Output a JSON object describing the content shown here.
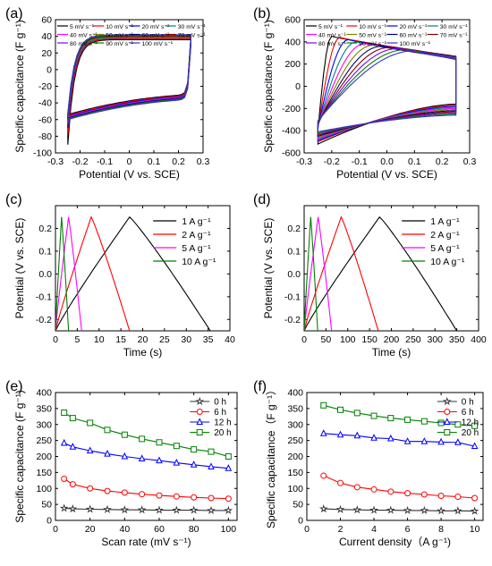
{
  "chart_data": [
    {
      "panel": "(a)",
      "type": "line",
      "xlabel": "Potential (V vs. SCE)",
      "ylabel": "Specific capacitance (F g⁻¹)",
      "xlim": [
        -0.3,
        0.3
      ],
      "ylim": [
        -100,
        60
      ],
      "xticks": [
        -0.3,
        -0.2,
        -0.1,
        0.0,
        0.1,
        0.2,
        0.3
      ],
      "xtick_labels": [
        "-0.3",
        "-0.2",
        "-0.1",
        "0",
        "0.1",
        "0.2",
        "0.3"
      ],
      "yticks": [
        -100,
        -80,
        -60,
        -40,
        -20,
        0,
        20,
        40,
        60
      ],
      "ytick_labels": [
        "-100",
        "-80",
        "-60",
        "-40",
        "-20",
        "0",
        "20",
        "40",
        "60"
      ],
      "legend_position": "top",
      "cv_shape": {
        "v_min": -0.25,
        "v_max": 0.25,
        "kind": "rectangular"
      },
      "series": [
        {
          "name": "5 mV s⁻¹",
          "color": "#000000",
          "upper_plateau": 36,
          "lower_plateau": -30,
          "upper_start": -90,
          "lower_end": 38
        },
        {
          "name": "10 mV s⁻¹",
          "color": "#ff0000",
          "upper_plateau": 37,
          "lower_plateau": -31,
          "upper_start": -78,
          "lower_end": 37
        },
        {
          "name": "20 mV s⁻¹",
          "color": "#0000ff",
          "upper_plateau": 38,
          "lower_plateau": -32,
          "upper_start": -70,
          "lower_end": 36
        },
        {
          "name": "30 mV s⁻¹",
          "color": "#008080",
          "upper_plateau": 38,
          "lower_plateau": -33,
          "upper_start": -66,
          "lower_end": 35
        },
        {
          "name": "40 mV s⁻¹",
          "color": "#ff00ff",
          "upper_plateau": 39,
          "lower_plateau": -33,
          "upper_start": -63,
          "lower_end": 34
        },
        {
          "name": "50 mV s⁻¹",
          "color": "#808000",
          "upper_plateau": 39,
          "lower_plateau": -34,
          "upper_start": -60,
          "lower_end": 33
        },
        {
          "name": "60 mV s⁻¹",
          "color": "#000080",
          "upper_plateau": 40,
          "lower_plateau": -34,
          "upper_start": -58,
          "lower_end": 32
        },
        {
          "name": "70 mV s⁻¹",
          "color": "#800000",
          "upper_plateau": 40,
          "lower_plateau": -35,
          "upper_start": -56,
          "lower_end": 31
        },
        {
          "name": "80 mV s⁻¹",
          "color": "#8000ff",
          "upper_plateau": 41,
          "lower_plateau": -35,
          "upper_start": -55,
          "lower_end": 30
        },
        {
          "name": "90 mV s⁻¹",
          "color": "#008000",
          "upper_plateau": 41,
          "lower_plateau": -35,
          "upper_start": -54,
          "lower_end": 29
        },
        {
          "name": "100 mV s⁻¹",
          "color": "#3333cc",
          "upper_plateau": 42,
          "lower_plateau": -36,
          "upper_start": -52,
          "lower_end": 28
        }
      ]
    },
    {
      "panel": "(b)",
      "type": "line",
      "xlabel": "Potential (V vs. SCE)",
      "ylabel": "Specific capacitance (F g⁻¹)",
      "xlim": [
        -0.3,
        0.3
      ],
      "ylim": [
        -600,
        600
      ],
      "xticks": [
        -0.3,
        -0.2,
        -0.1,
        0.0,
        0.1,
        0.2,
        0.3
      ],
      "xtick_labels": [
        "-0.3",
        "-0.2",
        "-0.1",
        "0.0",
        "0.1",
        "0.2",
        "0.3"
      ],
      "yticks": [
        -600,
        -400,
        -200,
        0,
        200,
        400,
        600
      ],
      "ytick_labels": [
        "-600",
        "-400",
        "-200",
        "0",
        "200",
        "400",
        "600"
      ],
      "legend_position": "top",
      "cv_shape": {
        "v_min": -0.25,
        "v_max": 0.25,
        "kind": "leaf"
      },
      "series": [
        {
          "name": "5 mV s⁻¹",
          "color": "#000000",
          "peak": 450,
          "peak_v": -0.2,
          "end_upper": 270,
          "lower_start": -520,
          "lower_end": -160
        },
        {
          "name": "10 mV s⁻¹",
          "color": "#ff0000",
          "peak": 440,
          "peak_v": -0.17,
          "end_upper": 265,
          "lower_start": -500,
          "lower_end": -170
        },
        {
          "name": "20 mV s⁻¹",
          "color": "#0000ff",
          "peak": 420,
          "peak_v": -0.14,
          "end_upper": 262,
          "lower_start": -490,
          "lower_end": -180
        },
        {
          "name": "30 mV s⁻¹",
          "color": "#008080",
          "peak": 400,
          "peak_v": -0.11,
          "end_upper": 258,
          "lower_start": -480,
          "lower_end": -190
        },
        {
          "name": "40 mV s⁻¹",
          "color": "#ff00ff",
          "peak": 385,
          "peak_v": -0.08,
          "end_upper": 255,
          "lower_start": -470,
          "lower_end": -200
        },
        {
          "name": "50 mV s⁻¹",
          "color": "#808000",
          "peak": 370,
          "peak_v": -0.05,
          "end_upper": 252,
          "lower_start": -460,
          "lower_end": -210
        },
        {
          "name": "60 mV s⁻¹",
          "color": "#000080",
          "peak": 360,
          "peak_v": -0.02,
          "end_upper": 250,
          "lower_start": -450,
          "lower_end": -220
        },
        {
          "name": "70 mV s⁻¹",
          "color": "#800000",
          "peak": 350,
          "peak_v": 0.01,
          "end_upper": 248,
          "lower_start": -440,
          "lower_end": -230
        },
        {
          "name": "80 mV s⁻¹",
          "color": "#8000ff",
          "peak": 340,
          "peak_v": 0.04,
          "end_upper": 246,
          "lower_start": -430,
          "lower_end": -240
        },
        {
          "name": "90 mV s⁻¹",
          "color": "#008000",
          "peak": 330,
          "peak_v": 0.07,
          "end_upper": 244,
          "lower_start": -420,
          "lower_end": -250
        },
        {
          "name": "100 mV s⁻¹",
          "color": "#3333cc",
          "peak": 320,
          "peak_v": 0.1,
          "end_upper": 242,
          "lower_start": -410,
          "lower_end": -260
        }
      ]
    },
    {
      "panel": "(c)",
      "type": "line",
      "xlabel": "Time (s)",
      "ylabel": "Potential (V vs. SCE)",
      "xlim": [
        0,
        40
      ],
      "ylim": [
        -0.25,
        0.3
      ],
      "xticks": [
        0,
        5,
        10,
        15,
        20,
        25,
        30,
        35,
        40
      ],
      "xtick_labels": [
        "0",
        "5",
        "10",
        "15",
        "20",
        "25",
        "30",
        "35",
        "40"
      ],
      "yticks": [
        -0.2,
        -0.1,
        0.0,
        0.1,
        0.2
      ],
      "ytick_labels": [
        "-0.2",
        "-0.1",
        "0.0",
        "0.1",
        "0.2"
      ],
      "legend_position": "top-right",
      "series": [
        {
          "name": "1 A g⁻¹",
          "color": "#000000",
          "x": [
            0,
            17.0,
            35.5
          ],
          "y": [
            -0.25,
            0.25,
            -0.25
          ]
        },
        {
          "name": "2 A g⁻¹",
          "color": "#ff0000",
          "x": [
            0,
            8.2,
            17.0
          ],
          "y": [
            -0.25,
            0.25,
            -0.25
          ]
        },
        {
          "name": "5 A g⁻¹",
          "color": "#ff00ff",
          "x": [
            0,
            3.0,
            6.0
          ],
          "y": [
            -0.25,
            0.25,
            -0.25
          ]
        },
        {
          "name": "10 A g⁻¹",
          "color": "#008000",
          "x": [
            0,
            1.4,
            3.0
          ],
          "y": [
            -0.25,
            0.25,
            -0.25
          ]
        }
      ]
    },
    {
      "panel": "(d)",
      "type": "line",
      "xlabel": "Time (s)",
      "ylabel": "Potential (V vs. SCE)",
      "xlim": [
        0,
        400
      ],
      "ylim": [
        -0.25,
        0.3
      ],
      "xticks": [
        0,
        50,
        100,
        150,
        200,
        250,
        300,
        350,
        400
      ],
      "xtick_labels": [
        "0",
        "50",
        "100",
        "150",
        "200",
        "250",
        "300",
        "350",
        "400"
      ],
      "yticks": [
        -0.2,
        -0.1,
        0.0,
        0.1,
        0.2
      ],
      "ytick_labels": [
        "-0.2",
        "-0.1",
        "0.0",
        "0.1",
        "0.2"
      ],
      "legend_position": "top-right",
      "series": [
        {
          "name": "1 A g⁻¹",
          "color": "#000000",
          "x": [
            0,
            173,
            350
          ],
          "y": [
            -0.25,
            0.25,
            -0.25
          ]
        },
        {
          "name": "2 A g⁻¹",
          "color": "#ff0000",
          "x": [
            0,
            85,
            170
          ],
          "y": [
            -0.25,
            0.25,
            -0.25
          ]
        },
        {
          "name": "5 A g⁻¹",
          "color": "#ff00ff",
          "x": [
            0,
            32,
            63
          ],
          "y": [
            -0.25,
            0.25,
            -0.25
          ]
        },
        {
          "name": "10 A g⁻¹",
          "color": "#008000",
          "x": [
            0,
            15,
            31
          ],
          "y": [
            -0.25,
            0.25,
            -0.25
          ]
        }
      ]
    },
    {
      "panel": "(e)",
      "type": "line",
      "xlabel": "Scan rate (mV s⁻¹)",
      "ylabel": "Specific capacitance (F g⁻¹)",
      "xlim": [
        0,
        105
      ],
      "ylim": [
        0,
        400
      ],
      "xticks": [
        0,
        20,
        40,
        60,
        80,
        100
      ],
      "xtick_labels": [
        "0",
        "20",
        "40",
        "60",
        "80",
        "100"
      ],
      "yticks": [
        0,
        50,
        100,
        150,
        200,
        250,
        300,
        350,
        400
      ],
      "ytick_labels": [
        "0",
        "50",
        "100",
        "150",
        "200",
        "250",
        "300",
        "350",
        "400"
      ],
      "legend_position": "top-right",
      "x": [
        5,
        10,
        20,
        30,
        40,
        50,
        60,
        70,
        80,
        90,
        100
      ],
      "series": [
        {
          "name": "0 h",
          "color": "#333333",
          "marker": "star",
          "values": [
            38,
            36,
            35,
            34,
            33,
            33,
            32,
            32,
            32,
            31,
            31
          ]
        },
        {
          "name": "6 h",
          "color": "#ff0000",
          "marker": "circle",
          "values": [
            130,
            113,
            100,
            92,
            87,
            82,
            78,
            75,
            72,
            70,
            68
          ]
        },
        {
          "name": "12 h",
          "color": "#0000ff",
          "marker": "triangle",
          "values": [
            242,
            230,
            218,
            208,
            200,
            193,
            187,
            180,
            174,
            168,
            163
          ]
        },
        {
          "name": "20 h",
          "color": "#008000",
          "marker": "square",
          "values": [
            337,
            320,
            305,
            283,
            268,
            255,
            244,
            233,
            222,
            215,
            200
          ]
        }
      ]
    },
    {
      "panel": "(f)",
      "type": "line",
      "xlabel": "Current density（A g⁻¹)",
      "ylabel": "Specific capacitance（F g⁻¹）",
      "xlim": [
        0,
        10.5
      ],
      "ylim": [
        0,
        400
      ],
      "xticks": [
        0,
        2,
        4,
        6,
        8,
        10
      ],
      "xtick_labels": [
        "0",
        "2",
        "4",
        "6",
        "8",
        "10"
      ],
      "yticks": [
        0,
        50,
        100,
        150,
        200,
        250,
        300,
        350,
        400
      ],
      "ytick_labels": [
        "0",
        "50",
        "100",
        "150",
        "200",
        "250",
        "300",
        "350",
        "400"
      ],
      "legend_position": "top-right",
      "x": [
        1,
        2,
        3,
        4,
        5,
        6,
        7,
        8,
        9,
        10
      ],
      "series": [
        {
          "name": "0 h",
          "color": "#333333",
          "marker": "star",
          "values": [
            36,
            34,
            33,
            32,
            32,
            31,
            31,
            30,
            30,
            29
          ]
        },
        {
          "name": "6 h",
          "color": "#ff0000",
          "marker": "circle",
          "values": [
            140,
            117,
            104,
            97,
            90,
            85,
            81,
            77,
            74,
            70
          ]
        },
        {
          "name": "12 h",
          "color": "#0000ff",
          "marker": "triangle",
          "values": [
            272,
            268,
            265,
            258,
            256,
            247,
            247,
            245,
            244,
            232
          ]
        },
        {
          "name": "20 h",
          "color": "#008000",
          "marker": "square",
          "values": [
            360,
            346,
            336,
            327,
            320,
            315,
            310,
            305,
            300,
            296
          ]
        }
      ]
    }
  ]
}
